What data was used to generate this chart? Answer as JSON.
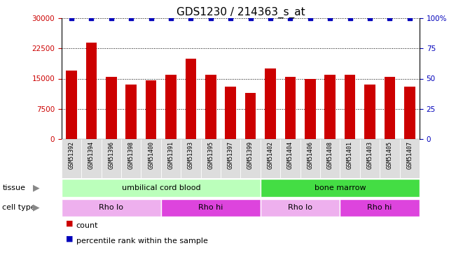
{
  "title": "GDS1230 / 214363_s_at",
  "samples": [
    "GSM51392",
    "GSM51394",
    "GSM51396",
    "GSM51398",
    "GSM51400",
    "GSM51391",
    "GSM51393",
    "GSM51395",
    "GSM51397",
    "GSM51399",
    "GSM51402",
    "GSM51404",
    "GSM51406",
    "GSM51408",
    "GSM51401",
    "GSM51403",
    "GSM51405",
    "GSM51407"
  ],
  "counts": [
    17000,
    24000,
    15500,
    13500,
    14500,
    16000,
    20000,
    16000,
    13000,
    11500,
    17500,
    15500,
    15000,
    16000,
    16000,
    13500,
    15500,
    13000
  ],
  "percentile": [
    100,
    100,
    100,
    100,
    100,
    100,
    100,
    100,
    100,
    100,
    100,
    100,
    100,
    100,
    100,
    100,
    100,
    100
  ],
  "ylim_left": [
    0,
    30000
  ],
  "ylim_right": [
    0,
    100
  ],
  "yticks_left": [
    0,
    7500,
    15000,
    22500,
    30000
  ],
  "yticks_right": [
    0,
    25,
    50,
    75,
    100
  ],
  "bar_color": "#cc0000",
  "dot_color": "#0000bb",
  "tissue_groups": [
    {
      "label": "umbilical cord blood",
      "start": 0,
      "end": 10,
      "color": "#bbffbb"
    },
    {
      "label": "bone marrow",
      "start": 10,
      "end": 18,
      "color": "#44dd44"
    }
  ],
  "cell_type_groups": [
    {
      "label": "Rho lo",
      "start": 0,
      "end": 5,
      "color": "#eeb0ee"
    },
    {
      "label": "Rho hi",
      "start": 5,
      "end": 10,
      "color": "#dd44dd"
    },
    {
      "label": "Rho lo",
      "start": 10,
      "end": 14,
      "color": "#eeb0ee"
    },
    {
      "label": "Rho hi",
      "start": 14,
      "end": 18,
      "color": "#dd44dd"
    }
  ],
  "left_tick_color": "#cc0000",
  "right_tick_color": "#0000bb",
  "title_fontsize": 11,
  "tick_fontsize": 7.5,
  "bar_width": 0.55
}
